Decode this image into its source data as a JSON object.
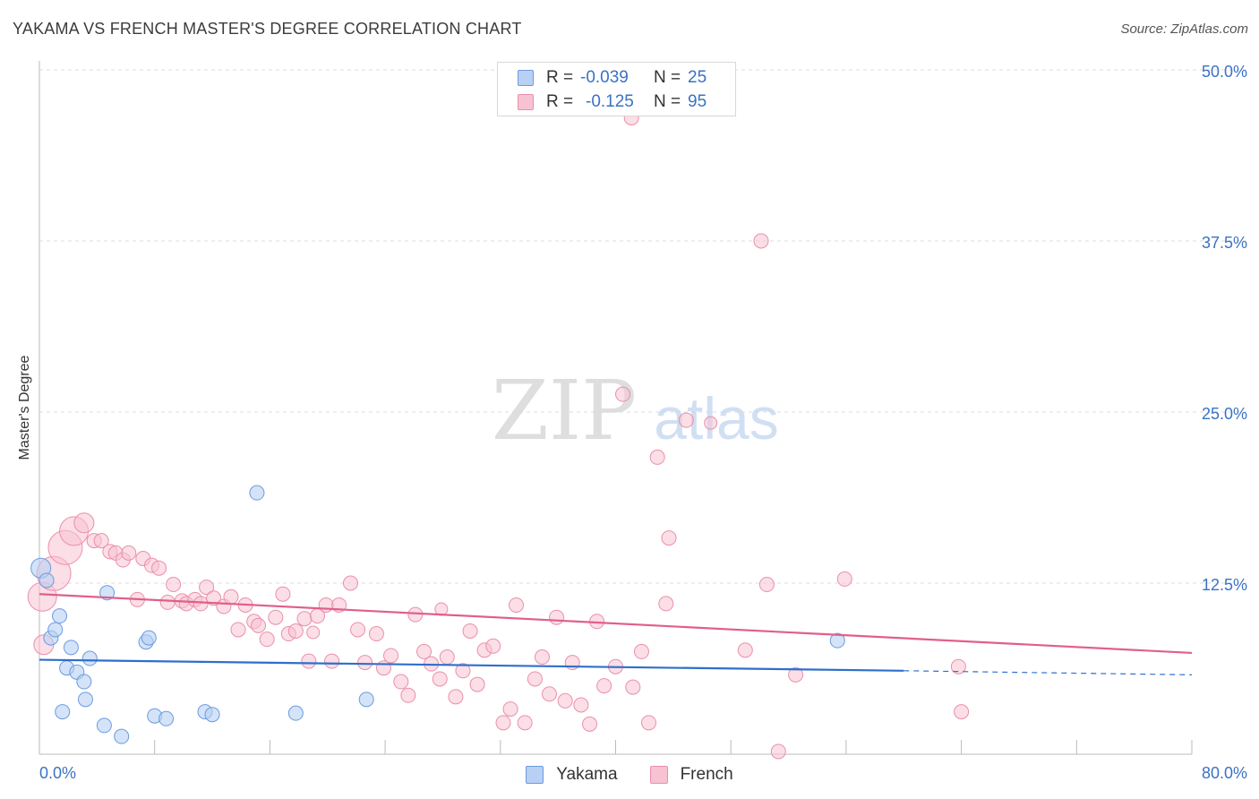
{
  "header": {
    "title": "YAKAMA VS FRENCH MASTER'S DEGREE CORRELATION CHART",
    "source": "Source: ZipAtlas.com"
  },
  "watermark": {
    "zip": "ZIP",
    "atlas": "atlas"
  },
  "legend_top": {
    "rows": [
      {
        "r_label": "R =",
        "r_value": "-0.039",
        "n_label": "N =",
        "n_value": "25"
      },
      {
        "r_label": "R =",
        "r_value": "-0.125",
        "n_label": "N =",
        "n_value": "95"
      }
    ]
  },
  "legend_bottom": {
    "items": [
      {
        "label": "Yakama"
      },
      {
        "label": "French"
      }
    ]
  },
  "colors": {
    "yakama_fill": "#b7d0f3",
    "yakama_stroke": "#6b9be0",
    "yakama_line": "#2e6fcb",
    "french_fill": "#f7c2d2",
    "french_stroke": "#ea8fab",
    "french_line": "#e05f8b",
    "tick_label": "#3a72c4",
    "grid": "#dddddd"
  },
  "chart_data": {
    "type": "scatter",
    "title": "YAKAMA VS FRENCH MASTER'S DEGREE CORRELATION CHART",
    "xlabel": "",
    "ylabel": "Master's Degree",
    "xlim": [
      0,
      80
    ],
    "ylim": [
      0,
      50
    ],
    "x_tick_labels": [
      "0.0%",
      "80.0%"
    ],
    "y_ticks": [
      12.5,
      25.0,
      37.5,
      50.0
    ],
    "y_tick_labels": [
      "12.5%",
      "25.0%",
      "37.5%",
      "50.0%"
    ],
    "grid": true,
    "legend_position": "top-center",
    "series": [
      {
        "name": "Yakama",
        "R": -0.039,
        "N": 25,
        "trend": {
          "x": [
            0,
            60
          ],
          "y": [
            6.9,
            6.1
          ],
          "dashed_x": [
            60,
            80
          ],
          "dashed_y": [
            6.1,
            5.8
          ]
        },
        "points": [
          {
            "x": 0.1,
            "y": 13.6,
            "s": 2
          },
          {
            "x": 0.5,
            "y": 12.7,
            "s": 1
          },
          {
            "x": 0.8,
            "y": 8.5,
            "s": 1
          },
          {
            "x": 1.1,
            "y": 9.1,
            "s": 1
          },
          {
            "x": 1.4,
            "y": 10.1,
            "s": 1
          },
          {
            "x": 1.6,
            "y": 3.1,
            "s": 1
          },
          {
            "x": 1.9,
            "y": 6.3,
            "s": 1
          },
          {
            "x": 2.2,
            "y": 7.8,
            "s": 1
          },
          {
            "x": 2.6,
            "y": 6.0,
            "s": 1
          },
          {
            "x": 3.1,
            "y": 5.3,
            "s": 1
          },
          {
            "x": 3.2,
            "y": 4.0,
            "s": 1
          },
          {
            "x": 3.5,
            "y": 7.0,
            "s": 1
          },
          {
            "x": 4.5,
            "y": 2.1,
            "s": 1
          },
          {
            "x": 4.7,
            "y": 11.8,
            "s": 1
          },
          {
            "x": 5.7,
            "y": 1.3,
            "s": 1
          },
          {
            "x": 7.4,
            "y": 8.2,
            "s": 1
          },
          {
            "x": 7.6,
            "y": 8.5,
            "s": 1
          },
          {
            "x": 8.0,
            "y": 2.8,
            "s": 1
          },
          {
            "x": 8.8,
            "y": 2.6,
            "s": 1
          },
          {
            "x": 11.5,
            "y": 3.1,
            "s": 1
          },
          {
            "x": 12.0,
            "y": 2.9,
            "s": 1
          },
          {
            "x": 15.1,
            "y": 19.1,
            "s": 1
          },
          {
            "x": 17.8,
            "y": 3.0,
            "s": 1
          },
          {
            "x": 22.7,
            "y": 4.0,
            "s": 1
          },
          {
            "x": 55.4,
            "y": 8.3,
            "s": 1
          }
        ]
      },
      {
        "name": "French",
        "R": -0.125,
        "N": 95,
        "trend": {
          "x": [
            0,
            80
          ],
          "y": [
            11.7,
            7.4
          ]
        },
        "points": [
          {
            "x": 0.2,
            "y": 11.5,
            "s": 3
          },
          {
            "x": 0.3,
            "y": 8.0,
            "s": 2
          },
          {
            "x": 1.0,
            "y": 13.2,
            "s": 4
          },
          {
            "x": 1.8,
            "y": 15.1,
            "s": 4
          },
          {
            "x": 2.4,
            "y": 16.3,
            "s": 3
          },
          {
            "x": 3.1,
            "y": 16.9,
            "s": 2
          },
          {
            "x": 3.8,
            "y": 15.6,
            "s": 1
          },
          {
            "x": 4.3,
            "y": 15.6,
            "s": 1
          },
          {
            "x": 4.9,
            "y": 14.8,
            "s": 1
          },
          {
            "x": 5.3,
            "y": 14.7,
            "s": 1
          },
          {
            "x": 5.8,
            "y": 14.2,
            "s": 1
          },
          {
            "x": 6.2,
            "y": 14.7,
            "s": 1
          },
          {
            "x": 6.8,
            "y": 11.3,
            "s": 1
          },
          {
            "x": 7.2,
            "y": 14.3,
            "s": 1
          },
          {
            "x": 7.8,
            "y": 13.8,
            "s": 1
          },
          {
            "x": 8.3,
            "y": 13.6,
            "s": 1
          },
          {
            "x": 8.9,
            "y": 11.1,
            "s": 1
          },
          {
            "x": 9.3,
            "y": 12.4,
            "s": 1
          },
          {
            "x": 9.9,
            "y": 11.2,
            "s": 1
          },
          {
            "x": 10.2,
            "y": 11.0,
            "s": 1
          },
          {
            "x": 10.8,
            "y": 11.3,
            "s": 1
          },
          {
            "x": 11.2,
            "y": 11.0,
            "s": 1
          },
          {
            "x": 11.6,
            "y": 12.2,
            "s": 1
          },
          {
            "x": 12.1,
            "y": 11.4,
            "s": 1
          },
          {
            "x": 12.8,
            "y": 10.8,
            "s": 1
          },
          {
            "x": 13.3,
            "y": 11.5,
            "s": 1
          },
          {
            "x": 13.8,
            "y": 9.1,
            "s": 1
          },
          {
            "x": 14.3,
            "y": 10.9,
            "s": 1
          },
          {
            "x": 14.9,
            "y": 9.7,
            "s": 1
          },
          {
            "x": 15.2,
            "y": 9.4,
            "s": 1
          },
          {
            "x": 15.8,
            "y": 8.4,
            "s": 1
          },
          {
            "x": 16.4,
            "y": 10.0,
            "s": 1
          },
          {
            "x": 16.9,
            "y": 11.7,
            "s": 1
          },
          {
            "x": 17.3,
            "y": 8.8,
            "s": 1
          },
          {
            "x": 17.8,
            "y": 9.0,
            "s": 1
          },
          {
            "x": 18.4,
            "y": 9.9,
            "s": 1
          },
          {
            "x": 18.7,
            "y": 6.8,
            "s": 1
          },
          {
            "x": 19.3,
            "y": 10.1,
            "s": 1
          },
          {
            "x": 19.9,
            "y": 10.9,
            "s": 1
          },
          {
            "x": 20.3,
            "y": 6.8,
            "s": 1
          },
          {
            "x": 20.8,
            "y": 10.9,
            "s": 1
          },
          {
            "x": 21.6,
            "y": 12.5,
            "s": 1
          },
          {
            "x": 22.1,
            "y": 9.1,
            "s": 1
          },
          {
            "x": 22.6,
            "y": 6.7,
            "s": 1
          },
          {
            "x": 23.4,
            "y": 8.8,
            "s": 1
          },
          {
            "x": 23.9,
            "y": 6.3,
            "s": 1
          },
          {
            "x": 24.4,
            "y": 7.2,
            "s": 1
          },
          {
            "x": 25.1,
            "y": 5.3,
            "s": 1
          },
          {
            "x": 25.6,
            "y": 4.3,
            "s": 1
          },
          {
            "x": 26.1,
            "y": 10.2,
            "s": 1
          },
          {
            "x": 26.7,
            "y": 7.5,
            "s": 1
          },
          {
            "x": 27.2,
            "y": 6.6,
            "s": 1
          },
          {
            "x": 27.8,
            "y": 5.5,
            "s": 1
          },
          {
            "x": 28.3,
            "y": 7.1,
            "s": 1
          },
          {
            "x": 28.9,
            "y": 4.2,
            "s": 1
          },
          {
            "x": 29.4,
            "y": 6.1,
            "s": 1
          },
          {
            "x": 29.9,
            "y": 9.0,
            "s": 1
          },
          {
            "x": 30.4,
            "y": 5.1,
            "s": 1
          },
          {
            "x": 30.9,
            "y": 7.6,
            "s": 1
          },
          {
            "x": 31.5,
            "y": 7.9,
            "s": 1
          },
          {
            "x": 32.2,
            "y": 2.3,
            "s": 1
          },
          {
            "x": 32.7,
            "y": 3.3,
            "s": 1
          },
          {
            "x": 33.1,
            "y": 10.9,
            "s": 1
          },
          {
            "x": 33.7,
            "y": 2.3,
            "s": 1
          },
          {
            "x": 34.4,
            "y": 5.5,
            "s": 1
          },
          {
            "x": 34.9,
            "y": 7.1,
            "s": 1
          },
          {
            "x": 35.4,
            "y": 4.4,
            "s": 1
          },
          {
            "x": 35.9,
            "y": 10.0,
            "s": 1
          },
          {
            "x": 36.5,
            "y": 3.9,
            "s": 1
          },
          {
            "x": 37.0,
            "y": 6.7,
            "s": 1
          },
          {
            "x": 37.6,
            "y": 3.6,
            "s": 1
          },
          {
            "x": 38.2,
            "y": 2.2,
            "s": 1
          },
          {
            "x": 38.7,
            "y": 9.7,
            "s": 1
          },
          {
            "x": 39.2,
            "y": 5.0,
            "s": 1
          },
          {
            "x": 40.0,
            "y": 6.4,
            "s": 1
          },
          {
            "x": 40.5,
            "y": 26.3,
            "s": 1
          },
          {
            "x": 41.2,
            "y": 4.9,
            "s": 1
          },
          {
            "x": 41.8,
            "y": 7.5,
            "s": 1
          },
          {
            "x": 42.3,
            "y": 2.3,
            "s": 1
          },
          {
            "x": 42.9,
            "y": 21.7,
            "s": 1
          },
          {
            "x": 43.5,
            "y": 11.0,
            "s": 1
          },
          {
            "x": 43.7,
            "y": 15.8,
            "s": 1
          },
          {
            "x": 44.9,
            "y": 24.4,
            "s": 1
          },
          {
            "x": 41.1,
            "y": 46.5,
            "s": 1
          },
          {
            "x": 50.1,
            "y": 37.5,
            "s": 1
          },
          {
            "x": 49.0,
            "y": 7.6,
            "s": 1
          },
          {
            "x": 50.5,
            "y": 12.4,
            "s": 1
          },
          {
            "x": 51.3,
            "y": 0.2,
            "s": 1
          },
          {
            "x": 52.5,
            "y": 5.8,
            "s": 1
          },
          {
            "x": 55.9,
            "y": 12.8,
            "s": 1
          },
          {
            "x": 63.8,
            "y": 6.4,
            "s": 1
          },
          {
            "x": 64.0,
            "y": 3.1,
            "s": 1
          },
          {
            "x": 46.6,
            "y": 24.2,
            "s": 0
          },
          {
            "x": 19.0,
            "y": 8.9,
            "s": 0
          },
          {
            "x": 27.9,
            "y": 10.6,
            "s": 0
          }
        ]
      }
    ]
  }
}
